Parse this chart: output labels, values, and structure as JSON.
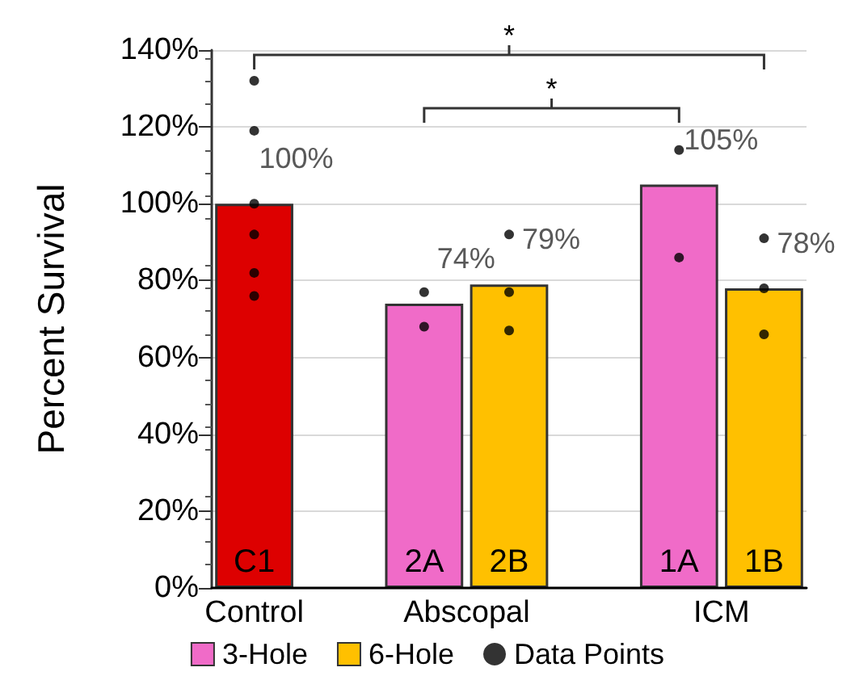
{
  "chart_data": {
    "type": "bar",
    "ylabel": "Percent Survival",
    "categories": [
      "C1",
      null,
      "2A",
      "2B",
      null,
      "1A",
      "1B"
    ],
    "stacked": true,
    "marker": "circle",
    "series": [
      {
        "color": "#dd0000",
        "values": [
          100,
          null,
          null,
          null,
          null,
          null,
          null
        ],
        "value_labels": [
          "100%",
          null,
          null,
          null,
          null,
          null,
          null
        ]
      },
      {
        "name": "3-Hole",
        "color": "#f06bc8",
        "values": [
          null,
          null,
          74,
          null,
          null,
          105,
          null
        ],
        "value_labels": [
          null,
          null,
          "74%",
          null,
          null,
          "105%",
          null
        ]
      },
      {
        "name": "6-Hole",
        "color": "#ffc000",
        "values": [
          null,
          null,
          null,
          79,
          null,
          null,
          78
        ],
        "value_labels": [
          null,
          null,
          null,
          "79%",
          null,
          null,
          "78%"
        ]
      },
      {
        "name": "Data Points",
        "type": "scatter",
        "color": "#000000",
        "x": [
          "C1",
          "C1",
          "C1",
          "C1",
          "C1",
          "C1",
          "C1",
          "2A",
          "2A",
          "2B",
          "2B",
          "2B",
          "1A",
          "1A",
          "1A",
          "1B",
          "1B",
          "1B"
        ],
        "values": [
          132,
          119,
          null,
          100,
          92,
          82,
          76,
          77,
          68,
          92,
          77,
          67,
          null,
          114,
          86,
          91,
          78,
          66
        ]
      }
    ],
    "ylim": [
      0,
      140
    ],
    "yticks": [
      {
        "value": 0,
        "label": "0%"
      },
      {
        "value": 20,
        "label": "20%"
      },
      {
        "value": 40,
        "label": "40%"
      },
      {
        "value": 60,
        "label": "60%"
      },
      {
        "value": 80,
        "label": "80%"
      },
      {
        "value": 100,
        "label": "100%"
      },
      {
        "value": 120,
        "label": "120%"
      },
      {
        "value": 140,
        "label": "140%"
      }
    ],
    "grid": "y",
    "legend": "bottom",
    "annotations": [
      "Control",
      "Abscopal",
      "ICM",
      "*",
      "*"
    ]
  }
}
